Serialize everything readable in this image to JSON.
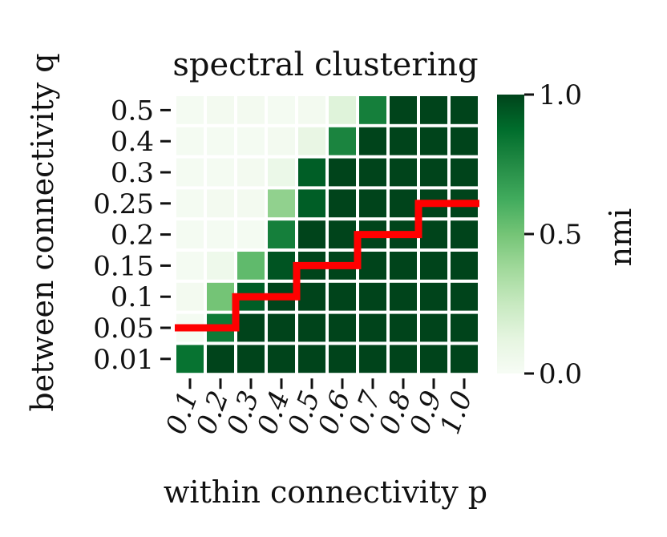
{
  "chart_data": {
    "type": "heatmap",
    "title": "spectral clustering",
    "xlabel": "within connectivity p",
    "ylabel": "between connectivity q",
    "x_categories": [
      "0.1",
      "0.2",
      "0.3",
      "0.4",
      "0.5",
      "0.6",
      "0.7",
      "0.8",
      "0.9",
      "1.0"
    ],
    "y_categories_top_to_bottom": [
      "0.5",
      "0.4",
      "0.3",
      "0.25",
      "0.2",
      "0.15",
      "0.1",
      "0.05",
      "0.01"
    ],
    "values_top_to_bottom": [
      [
        0.02,
        0.03,
        0.03,
        0.02,
        0.03,
        0.15,
        0.8,
        1.0,
        1.0,
        1.0
      ],
      [
        0.02,
        0.02,
        0.02,
        0.03,
        0.1,
        0.78,
        1.0,
        1.0,
        1.0,
        1.0
      ],
      [
        0.02,
        0.02,
        0.03,
        0.08,
        0.92,
        1.0,
        1.0,
        1.0,
        1.0,
        1.0
      ],
      [
        0.02,
        0.03,
        0.03,
        0.42,
        0.92,
        1.0,
        1.0,
        1.0,
        1.0,
        1.0
      ],
      [
        0.02,
        0.02,
        0.02,
        0.8,
        1.0,
        1.0,
        1.0,
        1.0,
        1.0,
        1.0
      ],
      [
        0.02,
        0.06,
        0.55,
        0.95,
        1.0,
        1.0,
        1.0,
        1.0,
        1.0,
        1.0
      ],
      [
        0.03,
        0.5,
        0.92,
        1.0,
        1.0,
        1.0,
        1.0,
        1.0,
        1.0,
        1.0
      ],
      [
        0.02,
        0.82,
        1.0,
        1.0,
        1.0,
        1.0,
        1.0,
        1.0,
        1.0,
        1.0
      ],
      [
        0.85,
        1.0,
        1.0,
        1.0,
        1.0,
        1.0,
        1.0,
        1.0,
        1.0,
        1.0
      ]
    ],
    "colorbar": {
      "label": "nmi",
      "range": [
        0.0,
        1.0
      ],
      "ticks": [
        "0.0",
        "0.5",
        "1.0"
      ],
      "cmap": "Greens",
      "low_color": "#f7fcf5",
      "high_color": "#00441b"
    },
    "overlay_line": {
      "color": "#ff0000",
      "description": "red staircase boundary",
      "y_level_per_column_top_to_bottom": [
        7.5,
        7.5,
        6.5,
        6.5,
        5.5,
        5.5,
        4.5,
        4.5,
        3.5,
        3.5
      ]
    },
    "grid": false,
    "legend": "colorbar-right"
  }
}
